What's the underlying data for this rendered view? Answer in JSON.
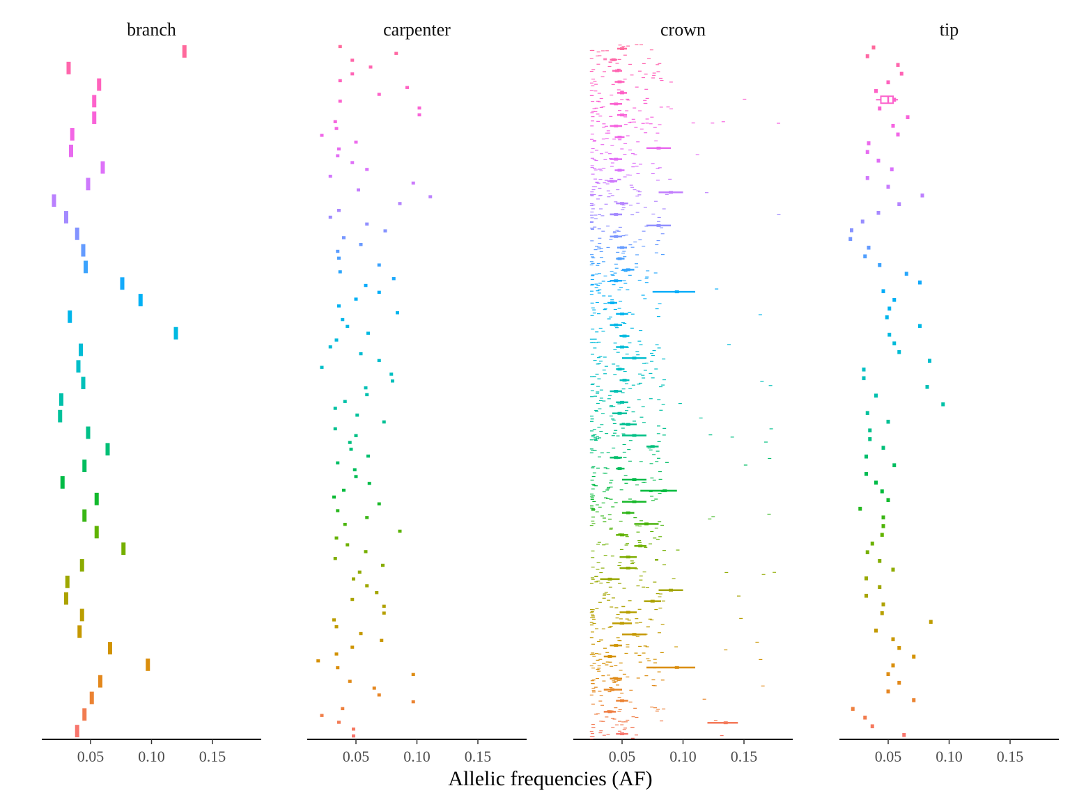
{
  "chart_data": {
    "type": "boxplot",
    "xlabel": "Allelic frequencies (AF)",
    "x_ticks": [
      0.05,
      0.1,
      0.15
    ],
    "x_tick_labels": [
      "0.05",
      "0.10",
      "0.15"
    ],
    "xlim": [
      0.01,
      0.19
    ],
    "orientation": "horizontal",
    "legend": "none",
    "grid": false,
    "color_gradient": [
      "#F8766D",
      "#E88526",
      "#D39200",
      "#B79F00",
      "#93AA00",
      "#5EB300",
      "#00BA38",
      "#00BF74",
      "#00C19F",
      "#00BFC4",
      "#00B9E3",
      "#00ADFA",
      "#619CFF",
      "#AE87FF",
      "#DB72FB",
      "#F564E3",
      "#FF61C3",
      "#FF699C"
    ],
    "panels": [
      {
        "name": "branch",
        "medians": [
          0.039,
          0.045,
          0.051,
          0.058,
          0.097,
          0.066,
          0.041,
          0.043,
          0.03,
          0.031,
          0.043,
          0.077,
          0.055,
          0.045,
          0.055,
          0.027,
          0.045,
          0.064,
          0.048,
          0.025,
          0.026,
          0.044,
          0.04,
          0.042,
          0.12,
          0.033,
          0.091,
          0.076,
          0.046,
          0.044,
          0.039,
          0.03,
          0.02,
          0.048,
          0.06,
          0.034,
          0.035,
          0.053,
          0.053,
          0.057,
          0.032,
          0.127
        ]
      },
      {
        "name": "carpenter",
        "medians": [
          0.048,
          0.048,
          0.036,
          0.022,
          0.039,
          0.097,
          0.069,
          0.065,
          0.045,
          0.097,
          0.035,
          0.019,
          0.034,
          0.047,
          0.071,
          0.054,
          0.034,
          0.032,
          0.073,
          0.073,
          0.047,
          0.067,
          0.059,
          0.048,
          0.053,
          0.072,
          0.033,
          0.058,
          0.043,
          0.034,
          0.086,
          0.041,
          0.059,
          0.035,
          0.069,
          0.032,
          0.04,
          0.061,
          0.05,
          0.049,
          0.035,
          0.06,
          0.046,
          0.045,
          0.05,
          0.033,
          0.073,
          0.051,
          0.033,
          0.041,
          0.059,
          0.058,
          0.08,
          0.079,
          0.022,
          0.069,
          0.054,
          0.029,
          0.034,
          0.06,
          0.043,
          0.039,
          0.084,
          0.036,
          0.05,
          0.069,
          0.058,
          0.081,
          0.037,
          0.069,
          0.036,
          0.035,
          0.054,
          0.04,
          0.074,
          0.059,
          0.029,
          0.036,
          0.086,
          0.111,
          0.052,
          0.097,
          0.029,
          0.059,
          0.047,
          0.035,
          0.036,
          0.05,
          0.022,
          0.034,
          0.033,
          0.102,
          0.102,
          0.037,
          0.069,
          0.092,
          0.037,
          0.047,
          0.062,
          0.047,
          0.083,
          0.037
        ]
      },
      {
        "name": "crown",
        "medians": [
          0.05,
          0.135,
          0.04,
          0.05,
          0.042,
          0.045,
          0.095,
          0.04,
          0.045,
          0.06,
          0.05,
          0.055,
          0.075,
          0.09,
          0.04,
          0.055,
          0.055,
          0.065,
          0.05,
          0.07,
          0.055,
          0.06,
          0.085,
          0.06,
          0.048,
          0.045,
          0.075,
          0.06,
          0.055,
          0.048,
          0.05,
          0.045,
          0.052,
          0.048,
          0.06,
          0.05,
          0.052,
          0.045,
          0.05,
          0.042,
          0.095,
          0.045,
          0.055,
          0.048,
          0.05,
          0.045,
          0.08,
          0.045,
          0.05,
          0.09,
          0.042,
          0.048,
          0.045,
          0.08,
          0.048,
          0.045,
          0.05,
          0.045,
          0.05,
          0.048,
          0.046,
          0.043,
          0.05
        ],
        "iqr_low": [
          0.045,
          0.12,
          0.035,
          0.045,
          0.035,
          0.04,
          0.07,
          0.035,
          0.04,
          0.05,
          0.042,
          0.048,
          0.068,
          0.08,
          0.032,
          0.048,
          0.048,
          0.06,
          0.045,
          0.06,
          0.05,
          0.05,
          0.065,
          0.05,
          0.045,
          0.04,
          0.07,
          0.05,
          0.048,
          0.042,
          0.045,
          0.04,
          0.048,
          0.045,
          0.05,
          0.045,
          0.048,
          0.04,
          0.045,
          0.038,
          0.075,
          0.04,
          0.05,
          0.045,
          0.046,
          0.04,
          0.07,
          0.04,
          0.045,
          0.08,
          0.038,
          0.044,
          0.04,
          0.07,
          0.044,
          0.04,
          0.046,
          0.04,
          0.046,
          0.044,
          0.042,
          0.04,
          0.046
        ],
        "iqr_high": [
          0.055,
          0.145,
          0.045,
          0.055,
          0.05,
          0.05,
          0.11,
          0.045,
          0.05,
          0.07,
          0.058,
          0.062,
          0.082,
          0.1,
          0.048,
          0.062,
          0.062,
          0.07,
          0.055,
          0.08,
          0.06,
          0.07,
          0.095,
          0.07,
          0.052,
          0.05,
          0.08,
          0.07,
          0.062,
          0.054,
          0.055,
          0.05,
          0.056,
          0.052,
          0.07,
          0.055,
          0.056,
          0.05,
          0.055,
          0.046,
          0.11,
          0.05,
          0.06,
          0.052,
          0.054,
          0.05,
          0.09,
          0.05,
          0.055,
          0.1,
          0.046,
          0.052,
          0.05,
          0.09,
          0.052,
          0.05,
          0.054,
          0.05,
          0.054,
          0.052,
          0.05,
          0.046,
          0.054
        ]
      },
      {
        "name": "tip",
        "medians": [
          0.063,
          0.037,
          0.031,
          0.021,
          0.071,
          0.05,
          0.059,
          0.05,
          0.054,
          0.071,
          0.059,
          0.054,
          0.04,
          0.085,
          0.045,
          0.046,
          0.032,
          0.043,
          0.032,
          0.054,
          0.043,
          0.033,
          0.037,
          0.045,
          0.046,
          0.046,
          0.027,
          0.05,
          0.045,
          0.04,
          0.032,
          0.055,
          0.032,
          0.046,
          0.035,
          0.035,
          0.05,
          0.033,
          0.095,
          0.04,
          0.082,
          0.03,
          0.03,
          0.084,
          0.059,
          0.055,
          0.051,
          0.076,
          0.049,
          0.051,
          0.055,
          0.046,
          0.076,
          0.065,
          0.043,
          0.031,
          0.034,
          0.019,
          0.02,
          0.029,
          0.042,
          0.059,
          0.078,
          0.05,
          0.033,
          0.053,
          0.042,
          0.033,
          0.034,
          0.058,
          0.054,
          0.066,
          0.043,
          0.055,
          0.04,
          0.05,
          0.061,
          0.058,
          0.033,
          0.038
        ],
        "box_row_from_top": 6,
        "box": {
          "q1": 0.044,
          "median": 0.05,
          "q3": 0.054,
          "min": 0.04,
          "max": 0.058
        }
      }
    ]
  }
}
